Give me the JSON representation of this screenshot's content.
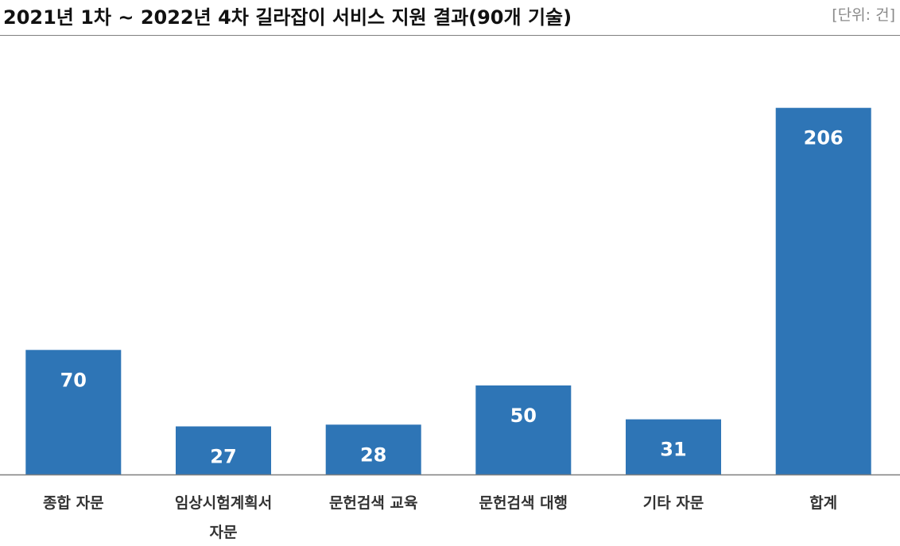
{
  "header": {
    "title": "2021년 1차 ~ 2022년 4차 길라잡이 서비스 지원 결과(90개 기술)",
    "unit": "[단위: 건]"
  },
  "colors": {
    "bar": "#2e75b6",
    "axis": "#7f7f7f"
  },
  "chart_data": {
    "type": "bar",
    "title": "2021년 1차 ~ 2022년 4차 길라잡이 서비스 지원 결과(90개 기술)",
    "unit": "[단위: 건]",
    "categories": [
      "종합 자문",
      "임상시험계획서 자문",
      "문헌검색 교육",
      "문헌검색 대행",
      "기타 자문",
      "합계"
    ],
    "category_lines": [
      [
        "종합 자문"
      ],
      [
        "임상시험계획서",
        "자문"
      ],
      [
        "문헌검색 교육"
      ],
      [
        "문헌검색 대행"
      ],
      [
        "기타 자문"
      ],
      [
        "합계"
      ]
    ],
    "values": [
      70,
      27,
      28,
      50,
      31,
      206
    ],
    "ylim": [
      0,
      230
    ],
    "grid": false,
    "legend": "none"
  }
}
